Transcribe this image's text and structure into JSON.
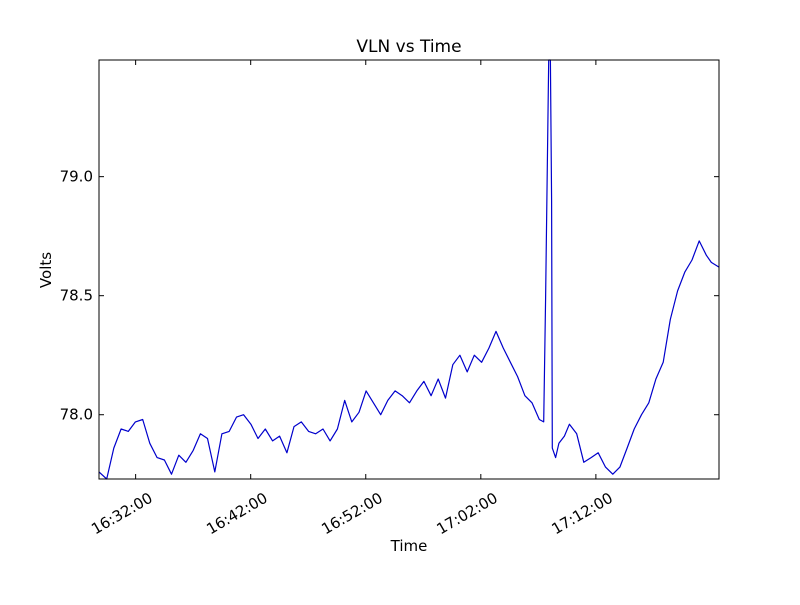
{
  "chart_data": {
    "type": "line",
    "title": "VLN vs Time",
    "xlabel": "Time",
    "ylabel": "Volts",
    "x_ticks": [
      "16:32:00",
      "16:42:00",
      "16:52:00",
      "17:02:00",
      "17:12:00"
    ],
    "y_ticks": [
      "78.0",
      "78.5",
      "79.0"
    ],
    "xlim": [
      "16:28:49",
      "17:22:42"
    ],
    "ylim": [
      77.73,
      79.49
    ],
    "grid": false,
    "line_color": "#0000cc",
    "series": [
      {
        "x": [
          "16:28:49",
          "16:29:29",
          "16:30:06",
          "16:30:44",
          "16:31:22",
          "16:31:59",
          "16:32:37",
          "16:33:14",
          "16:33:52",
          "16:34:30",
          "16:35:07",
          "16:35:45",
          "16:36:22",
          "16:37:00",
          "16:37:38",
          "16:38:15",
          "16:38:53",
          "16:39:30",
          "16:40:08",
          "16:40:46",
          "16:41:23",
          "16:42:01",
          "16:42:38",
          "16:43:16",
          "16:43:54",
          "16:44:31",
          "16:45:09",
          "16:45:46",
          "16:46:24",
          "16:47:02",
          "16:47:39",
          "16:48:17",
          "16:48:54",
          "16:49:32",
          "16:50:10",
          "16:50:47",
          "16:51:25",
          "16:52:02",
          "16:52:40",
          "16:53:18",
          "16:53:55",
          "16:54:33",
          "16:55:10",
          "16:55:48",
          "16:56:26",
          "16:57:03",
          "16:57:41",
          "16:58:18",
          "16:58:56",
          "16:59:34",
          "17:00:11",
          "17:00:49",
          "17:01:26",
          "17:02:04",
          "17:02:42",
          "17:03:19",
          "17:03:57",
          "17:04:34",
          "17:05:12",
          "17:05:50",
          "17:06:27",
          "17:07:05",
          "17:07:28",
          "17:07:38",
          "17:07:54",
          "17:08:03",
          "17:08:09",
          "17:08:13",
          "17:08:30",
          "17:08:47",
          "17:09:16",
          "17:09:42",
          "17:10:20",
          "17:10:57",
          "17:11:35",
          "17:12:12",
          "17:12:50",
          "17:13:28",
          "17:14:05",
          "17:14:43",
          "17:15:20",
          "17:15:58",
          "17:16:36",
          "17:17:13",
          "17:17:51",
          "17:18:28",
          "17:19:06",
          "17:19:44",
          "17:20:21",
          "17:20:59",
          "17:21:36",
          "17:22:02",
          "17:22:42"
        ],
        "values": [
          77.76,
          77.73,
          77.86,
          77.94,
          77.93,
          77.97,
          77.98,
          77.88,
          77.82,
          77.81,
          77.75,
          77.83,
          77.8,
          77.85,
          77.92,
          77.9,
          77.76,
          77.92,
          77.93,
          77.99,
          78.0,
          77.96,
          77.9,
          77.94,
          77.89,
          77.91,
          77.84,
          77.95,
          77.97,
          77.93,
          77.92,
          77.94,
          77.89,
          77.94,
          78.06,
          77.97,
          78.01,
          78.1,
          78.05,
          78.0,
          78.06,
          78.1,
          78.08,
          78.05,
          78.1,
          78.14,
          78.08,
          78.15,
          78.07,
          78.21,
          78.25,
          78.18,
          78.25,
          78.22,
          78.28,
          78.35,
          78.28,
          78.22,
          78.16,
          78.08,
          78.05,
          77.98,
          77.97,
          78.49,
          79.49,
          79.49,
          78.9,
          77.86,
          77.82,
          77.88,
          77.91,
          77.96,
          77.92,
          77.8,
          77.82,
          77.84,
          77.78,
          77.75,
          77.78,
          77.86,
          77.94,
          78.0,
          78.05,
          78.15,
          78.22,
          78.4,
          78.52,
          78.6,
          78.65,
          78.73,
          78.67,
          78.64,
          78.62
        ]
      }
    ]
  }
}
